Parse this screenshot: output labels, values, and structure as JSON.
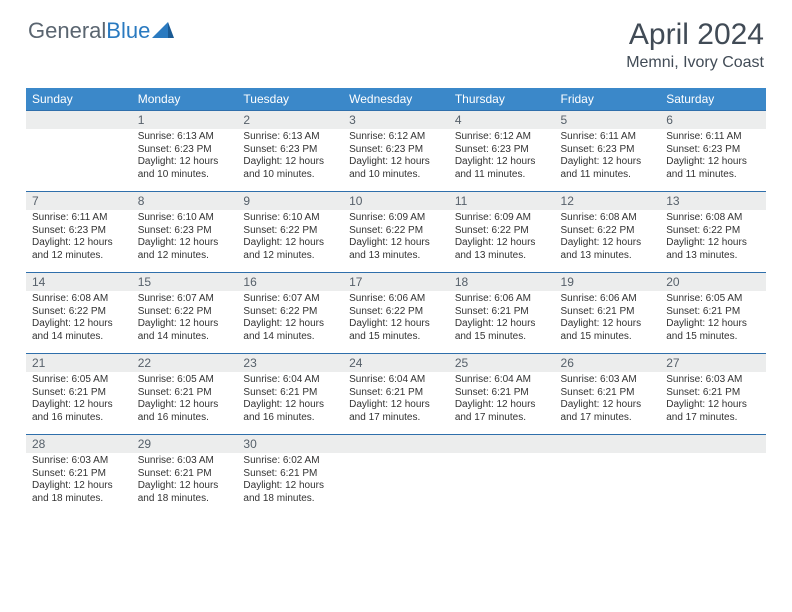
{
  "logo": {
    "text1": "General",
    "text2": "Blue"
  },
  "title": "April 2024",
  "location": "Memni, Ivory Coast",
  "colors": {
    "header_bg": "#3b88c9",
    "header_text": "#ffffff",
    "daynum_bg": "#eceded",
    "daynum_text": "#56606a",
    "row_border": "#2f6fab",
    "body_text": "#333333",
    "title_text": "#414b56",
    "logo_gray": "#5a6570",
    "logo_blue": "#2a7ac0"
  },
  "weekdays": [
    "Sunday",
    "Monday",
    "Tuesday",
    "Wednesday",
    "Thursday",
    "Friday",
    "Saturday"
  ],
  "weeks": [
    [
      null,
      {
        "d": "1",
        "sr": "Sunrise: 6:13 AM",
        "ss": "Sunset: 6:23 PM",
        "dl": "Daylight: 12 hours and 10 minutes."
      },
      {
        "d": "2",
        "sr": "Sunrise: 6:13 AM",
        "ss": "Sunset: 6:23 PM",
        "dl": "Daylight: 12 hours and 10 minutes."
      },
      {
        "d": "3",
        "sr": "Sunrise: 6:12 AM",
        "ss": "Sunset: 6:23 PM",
        "dl": "Daylight: 12 hours and 10 minutes."
      },
      {
        "d": "4",
        "sr": "Sunrise: 6:12 AM",
        "ss": "Sunset: 6:23 PM",
        "dl": "Daylight: 12 hours and 11 minutes."
      },
      {
        "d": "5",
        "sr": "Sunrise: 6:11 AM",
        "ss": "Sunset: 6:23 PM",
        "dl": "Daylight: 12 hours and 11 minutes."
      },
      {
        "d": "6",
        "sr": "Sunrise: 6:11 AM",
        "ss": "Sunset: 6:23 PM",
        "dl": "Daylight: 12 hours and 11 minutes."
      }
    ],
    [
      {
        "d": "7",
        "sr": "Sunrise: 6:11 AM",
        "ss": "Sunset: 6:23 PM",
        "dl": "Daylight: 12 hours and 12 minutes."
      },
      {
        "d": "8",
        "sr": "Sunrise: 6:10 AM",
        "ss": "Sunset: 6:23 PM",
        "dl": "Daylight: 12 hours and 12 minutes."
      },
      {
        "d": "9",
        "sr": "Sunrise: 6:10 AM",
        "ss": "Sunset: 6:22 PM",
        "dl": "Daylight: 12 hours and 12 minutes."
      },
      {
        "d": "10",
        "sr": "Sunrise: 6:09 AM",
        "ss": "Sunset: 6:22 PM",
        "dl": "Daylight: 12 hours and 13 minutes."
      },
      {
        "d": "11",
        "sr": "Sunrise: 6:09 AM",
        "ss": "Sunset: 6:22 PM",
        "dl": "Daylight: 12 hours and 13 minutes."
      },
      {
        "d": "12",
        "sr": "Sunrise: 6:08 AM",
        "ss": "Sunset: 6:22 PM",
        "dl": "Daylight: 12 hours and 13 minutes."
      },
      {
        "d": "13",
        "sr": "Sunrise: 6:08 AM",
        "ss": "Sunset: 6:22 PM",
        "dl": "Daylight: 12 hours and 13 minutes."
      }
    ],
    [
      {
        "d": "14",
        "sr": "Sunrise: 6:08 AM",
        "ss": "Sunset: 6:22 PM",
        "dl": "Daylight: 12 hours and 14 minutes."
      },
      {
        "d": "15",
        "sr": "Sunrise: 6:07 AM",
        "ss": "Sunset: 6:22 PM",
        "dl": "Daylight: 12 hours and 14 minutes."
      },
      {
        "d": "16",
        "sr": "Sunrise: 6:07 AM",
        "ss": "Sunset: 6:22 PM",
        "dl": "Daylight: 12 hours and 14 minutes."
      },
      {
        "d": "17",
        "sr": "Sunrise: 6:06 AM",
        "ss": "Sunset: 6:22 PM",
        "dl": "Daylight: 12 hours and 15 minutes."
      },
      {
        "d": "18",
        "sr": "Sunrise: 6:06 AM",
        "ss": "Sunset: 6:21 PM",
        "dl": "Daylight: 12 hours and 15 minutes."
      },
      {
        "d": "19",
        "sr": "Sunrise: 6:06 AM",
        "ss": "Sunset: 6:21 PM",
        "dl": "Daylight: 12 hours and 15 minutes."
      },
      {
        "d": "20",
        "sr": "Sunrise: 6:05 AM",
        "ss": "Sunset: 6:21 PM",
        "dl": "Daylight: 12 hours and 15 minutes."
      }
    ],
    [
      {
        "d": "21",
        "sr": "Sunrise: 6:05 AM",
        "ss": "Sunset: 6:21 PM",
        "dl": "Daylight: 12 hours and 16 minutes."
      },
      {
        "d": "22",
        "sr": "Sunrise: 6:05 AM",
        "ss": "Sunset: 6:21 PM",
        "dl": "Daylight: 12 hours and 16 minutes."
      },
      {
        "d": "23",
        "sr": "Sunrise: 6:04 AM",
        "ss": "Sunset: 6:21 PM",
        "dl": "Daylight: 12 hours and 16 minutes."
      },
      {
        "d": "24",
        "sr": "Sunrise: 6:04 AM",
        "ss": "Sunset: 6:21 PM",
        "dl": "Daylight: 12 hours and 17 minutes."
      },
      {
        "d": "25",
        "sr": "Sunrise: 6:04 AM",
        "ss": "Sunset: 6:21 PM",
        "dl": "Daylight: 12 hours and 17 minutes."
      },
      {
        "d": "26",
        "sr": "Sunrise: 6:03 AM",
        "ss": "Sunset: 6:21 PM",
        "dl": "Daylight: 12 hours and 17 minutes."
      },
      {
        "d": "27",
        "sr": "Sunrise: 6:03 AM",
        "ss": "Sunset: 6:21 PM",
        "dl": "Daylight: 12 hours and 17 minutes."
      }
    ],
    [
      {
        "d": "28",
        "sr": "Sunrise: 6:03 AM",
        "ss": "Sunset: 6:21 PM",
        "dl": "Daylight: 12 hours and 18 minutes."
      },
      {
        "d": "29",
        "sr": "Sunrise: 6:03 AM",
        "ss": "Sunset: 6:21 PM",
        "dl": "Daylight: 12 hours and 18 minutes."
      },
      {
        "d": "30",
        "sr": "Sunrise: 6:02 AM",
        "ss": "Sunset: 6:21 PM",
        "dl": "Daylight: 12 hours and 18 minutes."
      },
      null,
      null,
      null,
      null
    ]
  ]
}
